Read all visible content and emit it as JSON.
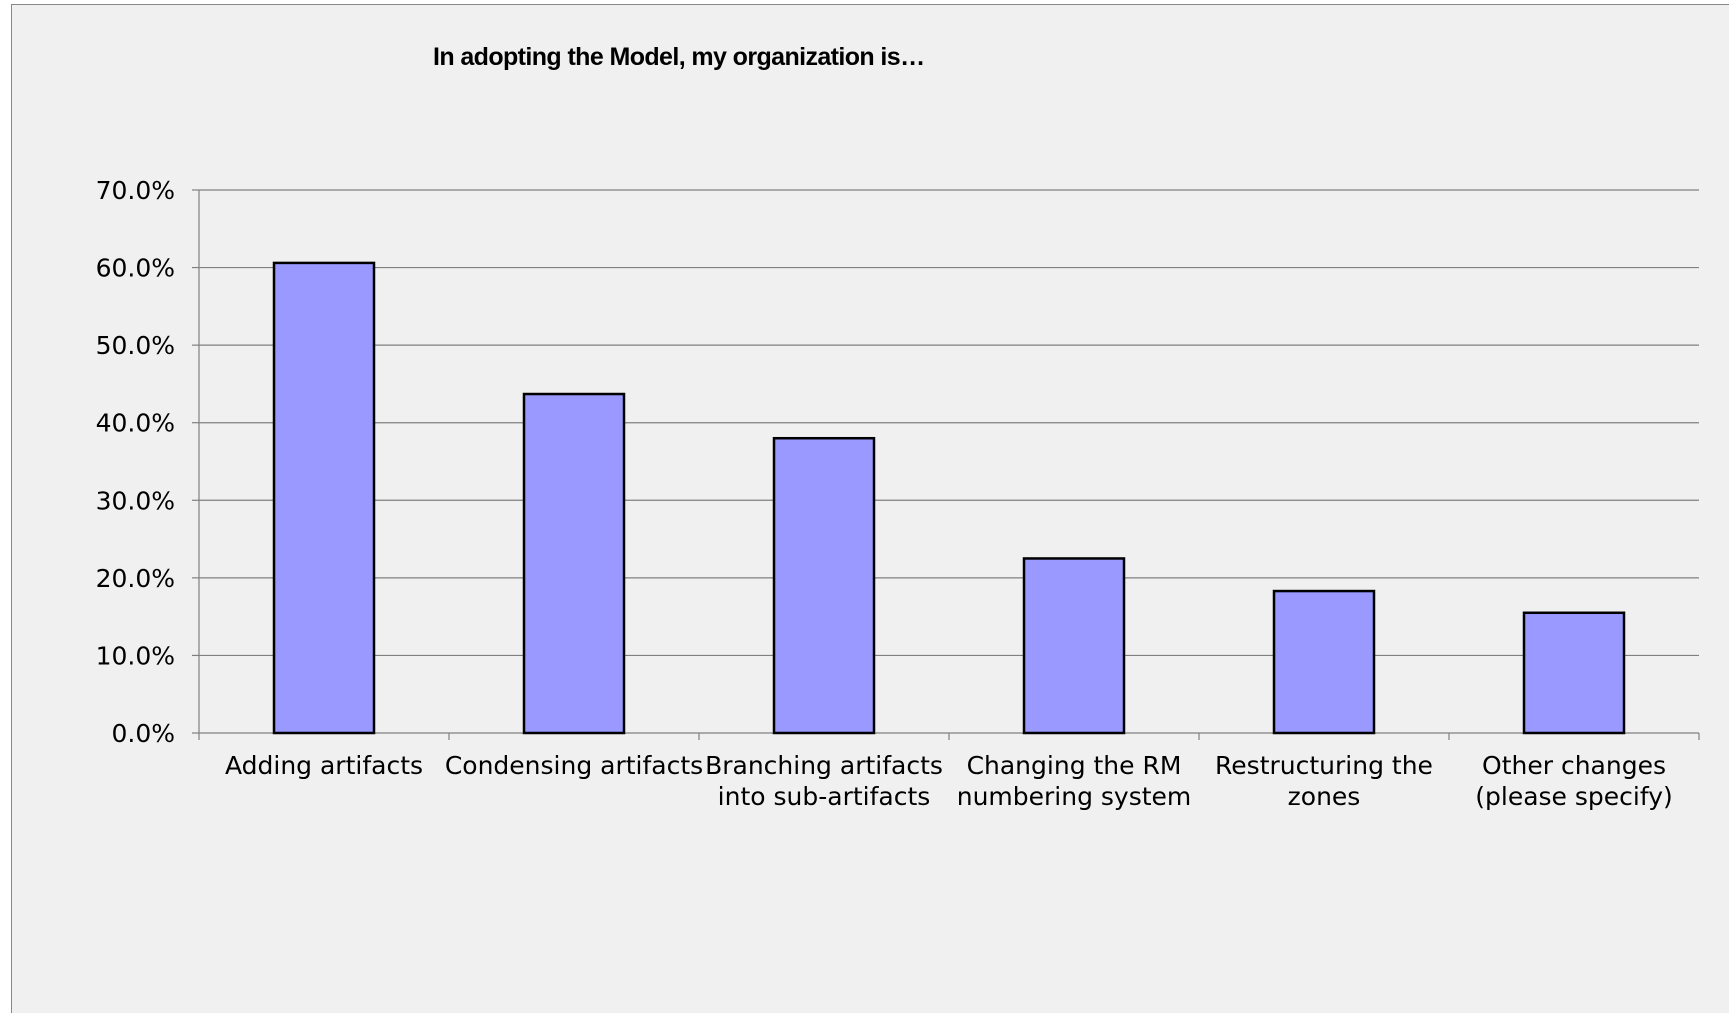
{
  "chart_data": {
    "type": "bar",
    "title": "In adopting the Model, my organization is…",
    "categories": [
      [
        "Adding artifacts"
      ],
      [
        "Condensing artifacts"
      ],
      [
        "Branching artifacts",
        "into sub-artifacts"
      ],
      [
        "Changing the RM",
        "numbering system"
      ],
      [
        "Restructuring the",
        "zones"
      ],
      [
        "Other changes",
        "(please specify)"
      ]
    ],
    "values": [
      60.6,
      43.7,
      38.0,
      22.5,
      18.3,
      15.5
    ],
    "yticks": [
      "0.0%",
      "10.0%",
      "20.0%",
      "30.0%",
      "40.0%",
      "50.0%",
      "60.0%",
      "70.0%"
    ],
    "ylim": [
      0,
      70
    ],
    "xlabel": "",
    "ylabel": "",
    "grid": true,
    "colors": {
      "bar_fill": "#9999ff",
      "bar_stroke": "#000000",
      "gridline": "#808080",
      "background": "#f0f0f0"
    }
  }
}
